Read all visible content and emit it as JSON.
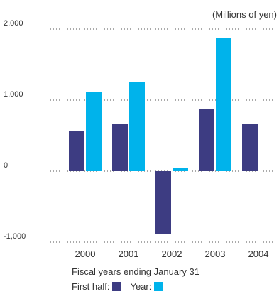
{
  "chart_data": {
    "type": "bar",
    "categories": [
      "2000",
      "2001",
      "2002",
      "2003",
      "2004"
    ],
    "series": [
      {
        "name": "First half:",
        "values": [
          570,
          660,
          -890,
          870,
          660
        ],
        "color": "#3d3c82"
      },
      {
        "name": "Year:",
        "values": [
          1110,
          1250,
          50,
          1880,
          null
        ],
        "color": "#00b3eb"
      }
    ],
    "unit_label": "(Millions of yen)",
    "xlabel": "Fiscal years ending January 31",
    "ylim": [
      -1000,
      2000
    ],
    "yticks": [
      2000,
      1000,
      0,
      -1000
    ],
    "ytick_labels": [
      "2,000",
      "1,000",
      "0",
      "-1,000"
    ],
    "grid": true,
    "legend_position": "bottom-left"
  }
}
